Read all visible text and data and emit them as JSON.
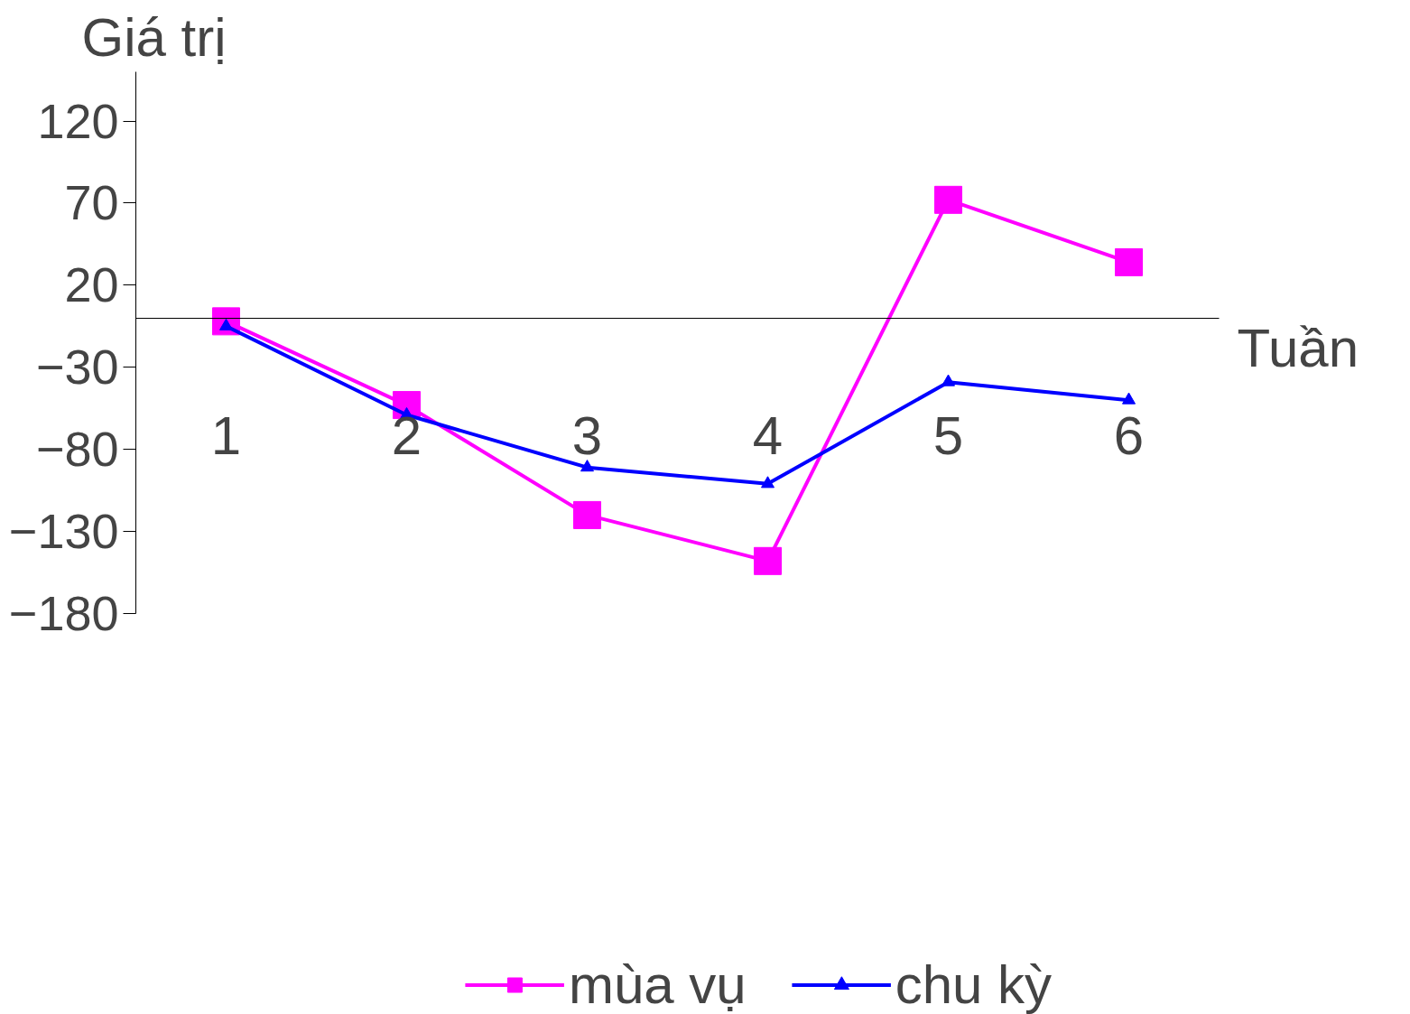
{
  "chart_data": {
    "type": "line",
    "ylabel": "Giá trị",
    "xlabel": "Tuần",
    "categories": [
      "1",
      "2",
      "3",
      "4",
      "5",
      "6"
    ],
    "ylim": [
      -180,
      150
    ],
    "yticks": [
      120,
      70,
      20,
      -30,
      -80,
      -130,
      -180
    ],
    "series": [
      {
        "name": "mùa vụ",
        "color": "#ff00ff",
        "marker": "square",
        "values": [
          -2,
          -53,
          -120,
          -148,
          72,
          34
        ]
      },
      {
        "name": "chu kỳ",
        "color": "#0000ff",
        "marker": "triangle",
        "values": [
          -5,
          -59,
          -91,
          -101,
          -39,
          -50
        ]
      }
    ],
    "grid": false,
    "legend": "bottom"
  }
}
